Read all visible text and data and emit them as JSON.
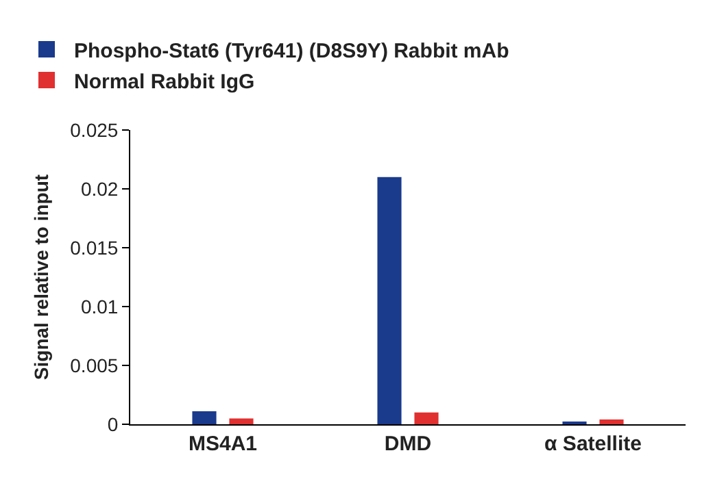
{
  "chart_data": {
    "type": "bar",
    "ylabel": "Signal relative to input",
    "categories": [
      "MS4A1",
      "DMD",
      "α Satellite"
    ],
    "series": [
      {
        "name": "Phospho-Stat6 (Tyr641) (D8S9Y) Rabbit mAb",
        "color": "#1a3a8c",
        "values": [
          0.0011,
          0.021,
          0.0002
        ]
      },
      {
        "name": "Normal Rabbit IgG",
        "color": "#e03030",
        "values": [
          0.0005,
          0.001,
          0.0004
        ]
      }
    ],
    "ylim": [
      0,
      0.025
    ],
    "yticks": [
      0,
      0.005,
      0.01,
      0.015,
      0.02,
      0.025
    ],
    "grid": false,
    "legend": "top left"
  }
}
